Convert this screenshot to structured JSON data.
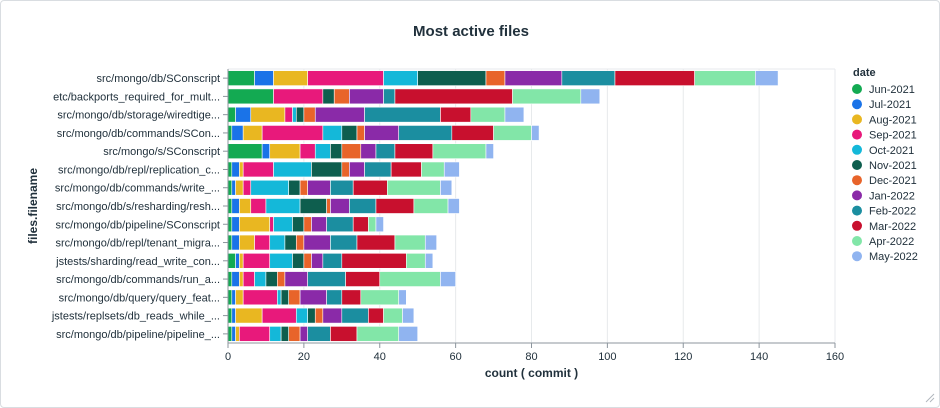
{
  "chart_data": {
    "type": "bar",
    "orientation": "horizontal",
    "stacked": true,
    "title": "Most active files",
    "xlabel": "count ( commit )",
    "ylabel": "files.filename",
    "xlim": [
      0,
      160
    ],
    "x_ticks": [
      "0",
      "20",
      "40",
      "60",
      "80",
      "100",
      "120",
      "140",
      "160"
    ],
    "grid": true,
    "legend_title": "date",
    "legend_position": "right",
    "categories": [
      "src/mongo/db/SConscript",
      "etc/backports_required_for_mult...",
      "src/mongo/db/storage/wiredtige...",
      "src/mongo/db/commands/SCon...",
      "src/mongo/s/SConscript",
      "src/mongo/db/repl/replication_c...",
      "src/mongo/db/commands/write_...",
      "src/mongo/db/s/resharding/resh...",
      "src/mongo/db/pipeline/SConscript",
      "src/mongo/db/repl/tenant_migra...",
      "jstests/sharding/read_write_con...",
      "src/mongo/db/commands/run_a...",
      "src/mongo/db/query/query_feat...",
      "jstests/replsets/db_reads_while_...",
      "src/mongo/db/pipeline/pipeline_..."
    ],
    "series": [
      {
        "name": "Jun-2021",
        "color": "#13aa52",
        "values": [
          7,
          12,
          2,
          1,
          9,
          1,
          1,
          1,
          1,
          1,
          2,
          1,
          1,
          1,
          1
        ]
      },
      {
        "name": "Jul-2021",
        "color": "#1a73e8",
        "values": [
          5,
          0,
          4,
          3,
          2,
          2,
          1,
          2,
          2,
          2,
          1,
          2,
          1,
          1,
          1
        ]
      },
      {
        "name": "Aug-2021",
        "color": "#e9b721",
        "values": [
          9,
          0,
          9,
          5,
          8,
          1,
          2,
          3,
          8,
          4,
          1,
          1,
          2,
          7,
          1
        ]
      },
      {
        "name": "Sep-2021",
        "color": "#e8197b",
        "values": [
          20,
          13,
          2,
          16,
          4,
          8,
          2,
          4,
          1,
          4,
          7,
          3,
          9,
          9,
          8
        ]
      },
      {
        "name": "Oct-2021",
        "color": "#14b8d9",
        "values": [
          9,
          0,
          1,
          5,
          4,
          10,
          10,
          9,
          5,
          4,
          6,
          3,
          1,
          3,
          3
        ]
      },
      {
        "name": "Nov-2021",
        "color": "#0e5e4e",
        "values": [
          18,
          3,
          2,
          4,
          3,
          8,
          3,
          7,
          3,
          3,
          3,
          3,
          2,
          2,
          2
        ]
      },
      {
        "name": "Dec-2021",
        "color": "#e8642a",
        "values": [
          5,
          4,
          3,
          2,
          5,
          2,
          2,
          1,
          2,
          2,
          2,
          2,
          3,
          2,
          3
        ]
      },
      {
        "name": "Jan-2022",
        "color": "#8a2aa8",
        "values": [
          15,
          9,
          13,
          9,
          4,
          4,
          6,
          5,
          4,
          7,
          3,
          6,
          7,
          5,
          2
        ]
      },
      {
        "name": "Feb-2022",
        "color": "#1b8ea0",
        "values": [
          14,
          3,
          20,
          14,
          5,
          7,
          6,
          7,
          7,
          7,
          5,
          10,
          4,
          7,
          6
        ]
      },
      {
        "name": "Mar-2022",
        "color": "#c8102e",
        "values": [
          21,
          31,
          8,
          11,
          10,
          8,
          9,
          10,
          4,
          10,
          17,
          9,
          5,
          4,
          7
        ]
      },
      {
        "name": "Apr-2022",
        "color": "#82e6a8",
        "values": [
          16,
          18,
          9,
          10,
          14,
          6,
          14,
          9,
          2,
          8,
          5,
          16,
          10,
          5,
          11
        ]
      },
      {
        "name": "May-2022",
        "color": "#90b4f0",
        "values": [
          6,
          5,
          5,
          2,
          2,
          4,
          3,
          3,
          2,
          3,
          2,
          4,
          2,
          3,
          5
        ]
      }
    ]
  }
}
